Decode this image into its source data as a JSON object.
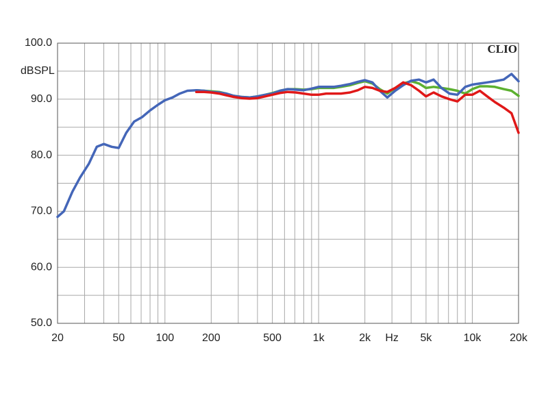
{
  "chart_data": {
    "type": "line",
    "ylabel": "dBSPL",
    "brand": "CLIO",
    "xscale": "log",
    "grid": true,
    "xlim": [
      20,
      20000
    ],
    "ylim": [
      50,
      100
    ],
    "xticks": [
      20,
      50,
      100,
      200,
      500,
      {
        "value": 1000,
        "label": "1k"
      },
      {
        "value": 2000,
        "label": "2k"
      },
      {
        "value": 3000,
        "label": "Hz"
      },
      {
        "value": 5000,
        "label": "5k"
      },
      {
        "value": 10000,
        "label": "10k"
      },
      {
        "value": 20000,
        "label": "20k"
      }
    ],
    "x_minor_ticks": [
      30,
      40,
      60,
      70,
      80,
      90,
      300,
      400,
      600,
      700,
      800,
      900,
      4000,
      6000,
      7000,
      8000,
      9000
    ],
    "yticks": [
      {
        "value": 50,
        "label": "50.0"
      },
      {
        "value": 60,
        "label": "60.0"
      },
      {
        "value": 70,
        "label": "70.0"
      },
      {
        "value": 80,
        "label": "80.0"
      },
      {
        "value": 90,
        "label": "90.0"
      },
      {
        "value": 100,
        "label": "100.0"
      }
    ],
    "y_minor_ticks": [
      55,
      65,
      75,
      85,
      95
    ],
    "x": [
      20,
      22,
      25,
      28,
      32,
      36,
      40,
      45,
      50,
      56,
      63,
      71,
      80,
      90,
      100,
      112,
      125,
      140,
      160,
      180,
      200,
      225,
      250,
      280,
      315,
      355,
      400,
      450,
      500,
      560,
      630,
      710,
      800,
      900,
      1000,
      1120,
      1250,
      1400,
      1600,
      1800,
      2000,
      2240,
      2500,
      2800,
      3150,
      3550,
      4000,
      4500,
      5000,
      5600,
      6300,
      7100,
      8000,
      9000,
      10000,
      11200,
      12500,
      14000,
      16000,
      18000,
      20000
    ],
    "series": [
      {
        "color": "#5cb030",
        "values": [
          null,
          null,
          null,
          null,
          null,
          null,
          null,
          null,
          null,
          null,
          null,
          null,
          null,
          null,
          null,
          null,
          null,
          null,
          91.6,
          91.5,
          91.4,
          91.3,
          91,
          90.6,
          90.4,
          90.3,
          90.5,
          90.8,
          91.1,
          91.5,
          91.8,
          91.8,
          91.7,
          91.8,
          92,
          92,
          92,
          92.2,
          92.5,
          92.9,
          93.2,
          92.8,
          91.8,
          91,
          92,
          92.8,
          93.2,
          92.8,
          92,
          92.2,
          92,
          91.8,
          91.5,
          91,
          91.8,
          92.3,
          92.3,
          92.2,
          91.8,
          91.5,
          90.6
        ]
      },
      {
        "color": "#4466b8",
        "values": [
          69,
          70,
          73.5,
          76,
          78.5,
          81.5,
          82,
          81.5,
          81.3,
          84,
          86,
          86.8,
          88,
          89,
          89.8,
          90.3,
          91,
          91.5,
          91.6,
          91.5,
          91.3,
          91.2,
          91,
          90.6,
          90.4,
          90.3,
          90.5,
          90.8,
          91,
          91.5,
          91.8,
          91.7,
          91.6,
          91.9,
          92.2,
          92.2,
          92.2,
          92.4,
          92.7,
          93.1,
          93.4,
          93,
          91.5,
          90.3,
          91.5,
          92.5,
          93.3,
          93.5,
          93,
          93.5,
          92,
          91,
          90.8,
          92.2,
          92.6,
          92.8,
          93,
          93.2,
          93.5,
          94.5,
          93.2
        ]
      },
      {
        "color": "#e01818",
        "values": [
          null,
          null,
          null,
          null,
          null,
          null,
          null,
          null,
          null,
          null,
          null,
          null,
          null,
          null,
          null,
          null,
          null,
          null,
          91.3,
          91.3,
          91.2,
          91,
          90.7,
          90.4,
          90.2,
          90.1,
          90.2,
          90.5,
          90.8,
          91.1,
          91.3,
          91.2,
          91,
          90.8,
          90.8,
          91,
          91,
          91,
          91.2,
          91.6,
          92.2,
          92,
          91.5,
          91.3,
          92,
          93,
          92.5,
          91.5,
          90.5,
          91.2,
          90.5,
          90,
          89.6,
          90.8,
          90.8,
          91.5,
          90.5,
          89.5,
          88.5,
          87.5,
          84
        ]
      }
    ]
  }
}
